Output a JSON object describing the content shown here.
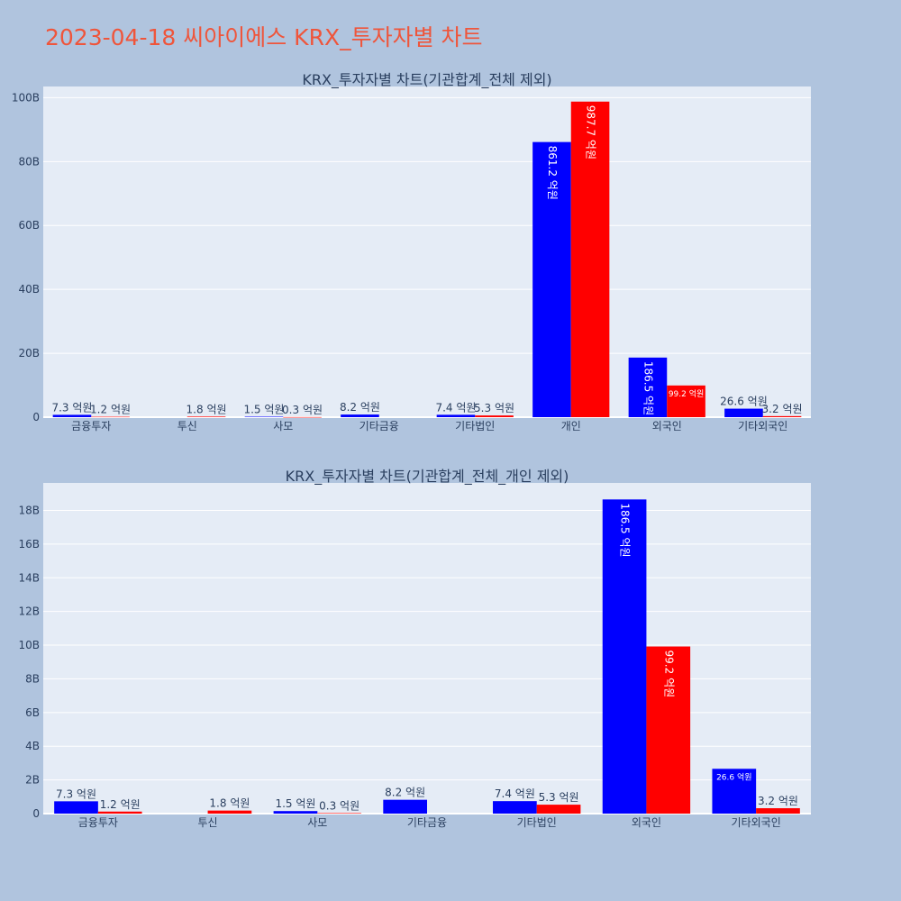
{
  "page_title": "2023-04-18 씨아이에스 KRX_투자자별 차트",
  "colors": {
    "buy": "#0000ff",
    "sell": "#ff0000",
    "plot_bg": "#e5ecf6",
    "paper_bg": "#b0c4de",
    "title": "#ef553b"
  },
  "chart_data": [
    {
      "type": "bar",
      "title": "KRX_투자자별 차트(기관합계_전체 제외)",
      "categories": [
        "금융투자",
        "투신",
        "사모",
        "기타금융",
        "기타법인",
        "개인",
        "외국인",
        "기타외국인"
      ],
      "series": [
        {
          "values": [
            0.73,
            0,
            0.15,
            0.82,
            0.74,
            86.12,
            18.65,
            2.66
          ],
          "labels": [
            "7.3 억원",
            "",
            "1.5 억원",
            "8.2 억원",
            "7.4 억원",
            "861.2 억원",
            "186.5 억원",
            "26.6 억원"
          ]
        },
        {
          "values": [
            0.12,
            0.18,
            0.03,
            0,
            0.53,
            98.77,
            9.92,
            0.32
          ],
          "labels": [
            "1.2 억원",
            "1.8 억원",
            "0.3 억원",
            "",
            "5.3 억원",
            "987.7 억원",
            "99.2 억원",
            "3.2 억원"
          ]
        }
      ],
      "yticks": [
        0,
        20,
        40,
        60,
        80,
        100
      ],
      "ytick_labels": [
        "0",
        "20B",
        "40B",
        "60B",
        "80B",
        "100B"
      ],
      "ylim": [
        0,
        103.5
      ]
    },
    {
      "type": "bar",
      "title": "KRX_투자자별 차트(기관합계_전체_개인 제외)",
      "categories": [
        "금융투자",
        "투신",
        "사모",
        "기타금융",
        "기타법인",
        "외국인",
        "기타외국인"
      ],
      "series": [
        {
          "values": [
            0.73,
            0,
            0.15,
            0.82,
            0.74,
            18.65,
            2.66
          ],
          "labels": [
            "7.3 억원",
            "",
            "1.5 억원",
            "8.2 억원",
            "7.4 억원",
            "186.5 억원",
            "26.6 억원"
          ]
        },
        {
          "values": [
            0.12,
            0.18,
            0.03,
            0,
            0.53,
            9.92,
            0.32
          ],
          "labels": [
            "1.2 억원",
            "1.8 억원",
            "0.3 억원",
            "",
            "5.3 억원",
            "99.2 억원",
            "3.2 억원"
          ]
        }
      ],
      "yticks": [
        0,
        2,
        4,
        6,
        8,
        10,
        12,
        14,
        16,
        18
      ],
      "ytick_labels": [
        "0",
        "2B",
        "4B",
        "6B",
        "8B",
        "10B",
        "12B",
        "14B",
        "16B",
        "18B"
      ],
      "ylim": [
        0,
        19.63
      ]
    }
  ]
}
